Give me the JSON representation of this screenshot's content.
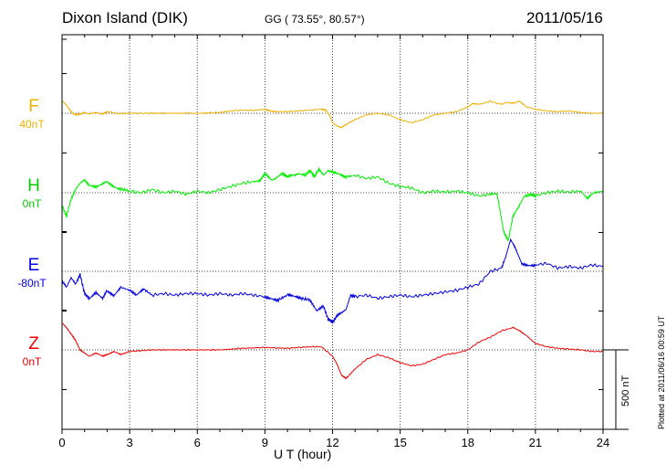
{
  "header": {
    "station": "Dixon Island (DIK)",
    "coords": "GG ( 73.55°,  80.57°)",
    "date": "2011/05/16"
  },
  "footer": {
    "plotted": "Plotted at 2011/06/16 00:59 UT",
    "scale_label": "500 nT"
  },
  "chart_data": {
    "type": "line",
    "xlabel": "U T (hour)",
    "xlim": [
      0,
      24
    ],
    "xticks": [
      "0",
      "3",
      "6",
      "9",
      "12",
      "15",
      "18",
      "21",
      "24"
    ],
    "ylabel": "",
    "scale_bar_nT": 500,
    "grid": true,
    "series": [
      {
        "name": "F",
        "offset_label": "40nT",
        "color": "#f0b000",
        "x": [
          0,
          0.2,
          0.4,
          0.6,
          0.8,
          1,
          1.2,
          1.5,
          1.8,
          2,
          2.5,
          3,
          3.5,
          4,
          5,
          6,
          7,
          7.5,
          8,
          8.5,
          9,
          9.2,
          9.5,
          10,
          10.5,
          11,
          11.5,
          11.7,
          11.9,
          12,
          12.2,
          12.4,
          12.6,
          13,
          13.5,
          14,
          14.5,
          15,
          15.5,
          16,
          16.5,
          17,
          17.5,
          18,
          18.2,
          18.5,
          19,
          19.5,
          19.7,
          20,
          20.3,
          20.6,
          21,
          21.5,
          22,
          22.5,
          23,
          23.5,
          24
        ],
        "y": [
          80,
          50,
          10,
          -10,
          -5,
          5,
          -5,
          5,
          -5,
          10,
          -3,
          0,
          0,
          0,
          0,
          0,
          5,
          15,
          20,
          18,
          25,
          15,
          10,
          10,
          15,
          20,
          25,
          20,
          -20,
          -60,
          -80,
          -90,
          -70,
          -40,
          -10,
          0,
          -10,
          -40,
          -60,
          -40,
          -10,
          0,
          10,
          40,
          60,
          55,
          75,
          55,
          70,
          65,
          75,
          40,
          25,
          15,
          10,
          15,
          5,
          0,
          0
        ]
      },
      {
        "name": "H",
        "offset_label": "0nT",
        "color": "#00ee00",
        "x": [
          0,
          0.2,
          0.4,
          0.6,
          0.8,
          1,
          1.2,
          1.5,
          1.8,
          2,
          2.3,
          2.6,
          3,
          3.5,
          4,
          4.5,
          5,
          5.5,
          6,
          6.5,
          7,
          7.5,
          8,
          8.5,
          8.8,
          9,
          9.3,
          9.5,
          9.8,
          10,
          10.3,
          10.5,
          10.8,
          11,
          11.2,
          11.4,
          11.6,
          11.8,
          12,
          12.3,
          12.6,
          13,
          13.5,
          14,
          14.5,
          15,
          15.5,
          16,
          16.5,
          17,
          17.5,
          18,
          18.5,
          19,
          19.3,
          19.6,
          19.8,
          20,
          20.2,
          20.5,
          20.8,
          21,
          21.5,
          22,
          22.5,
          23,
          23.3,
          23.6,
          24
        ],
        "y": [
          -80,
          -150,
          -40,
          20,
          60,
          80,
          50,
          40,
          60,
          70,
          40,
          25,
          10,
          0,
          20,
          0,
          10,
          -10,
          10,
          0,
          20,
          40,
          60,
          70,
          80,
          120,
          80,
          90,
          120,
          100,
          110,
          120,
          110,
          140,
          100,
          150,
          110,
          140,
          130,
          120,
          100,
          110,
          90,
          100,
          60,
          40,
          30,
          0,
          10,
          5,
          10,
          0,
          -20,
          -10,
          -10,
          -250,
          -300,
          -150,
          -100,
          -20,
          -10,
          -20,
          0,
          10,
          5,
          10,
          -40,
          0,
          10
        ]
      },
      {
        "name": "E",
        "offset_label": "-80nT",
        "color": "#0000dd",
        "x": [
          0,
          0.2,
          0.4,
          0.6,
          0.8,
          1,
          1.2,
          1.5,
          1.8,
          2,
          2.3,
          2.6,
          3,
          3.3,
          3.6,
          4,
          4.5,
          5,
          5.5,
          6,
          6.5,
          7,
          7.5,
          8,
          8.5,
          9,
          9.3,
          9.6,
          10,
          10.3,
          10.6,
          11,
          11.3,
          11.6,
          11.8,
          12,
          12.2,
          12.4,
          12.6,
          12.8,
          13,
          13.5,
          14,
          14.5,
          15,
          15.5,
          16,
          16.5,
          17,
          17.5,
          18,
          18.5,
          19,
          19.5,
          19.7,
          19.9,
          20.1,
          20.4,
          20.7,
          21,
          21.5,
          22,
          22.5,
          23,
          23.5,
          24
        ],
        "y": [
          -60,
          -100,
          -40,
          -80,
          -20,
          -140,
          -170,
          -130,
          -170,
          -120,
          -150,
          -100,
          -120,
          -150,
          -110,
          -150,
          -140,
          -150,
          -140,
          -140,
          -150,
          -140,
          -150,
          -140,
          -150,
          -160,
          -170,
          -180,
          -150,
          -160,
          -170,
          -180,
          -250,
          -220,
          -300,
          -320,
          -280,
          -260,
          -240,
          -150,
          -160,
          -150,
          -170,
          -160,
          -150,
          -160,
          -150,
          -140,
          -130,
          -120,
          -100,
          -80,
          0,
          20,
          100,
          200,
          150,
          50,
          40,
          40,
          50,
          20,
          30,
          20,
          40,
          30
        ]
      },
      {
        "name": "Z",
        "offset_label": "0nT",
        "color": "#ee0000",
        "x": [
          0,
          0.2,
          0.4,
          0.6,
          0.8,
          1,
          1.2,
          1.5,
          1.8,
          2,
          2.3,
          2.6,
          3,
          3.5,
          4,
          5,
          6,
          7,
          8,
          9,
          10,
          11,
          11.5,
          12,
          12.2,
          12.4,
          12.6,
          13,
          13.5,
          14,
          14.5,
          15,
          15.5,
          16,
          16.5,
          17,
          17.5,
          18,
          18.5,
          19,
          19.5,
          20,
          20.3,
          20.6,
          21,
          21.5,
          22,
          22.5,
          23,
          23.5,
          24
        ],
        "y": [
          170,
          140,
          100,
          60,
          0,
          -20,
          -40,
          -20,
          -40,
          -30,
          -10,
          -30,
          -10,
          -5,
          0,
          0,
          0,
          0,
          10,
          15,
          10,
          20,
          20,
          -40,
          -90,
          -160,
          -180,
          -120,
          -60,
          -30,
          -50,
          -80,
          -100,
          -90,
          -60,
          -30,
          -20,
          0,
          50,
          80,
          120,
          140,
          120,
          90,
          40,
          20,
          10,
          5,
          0,
          -10,
          -10
        ]
      }
    ]
  }
}
